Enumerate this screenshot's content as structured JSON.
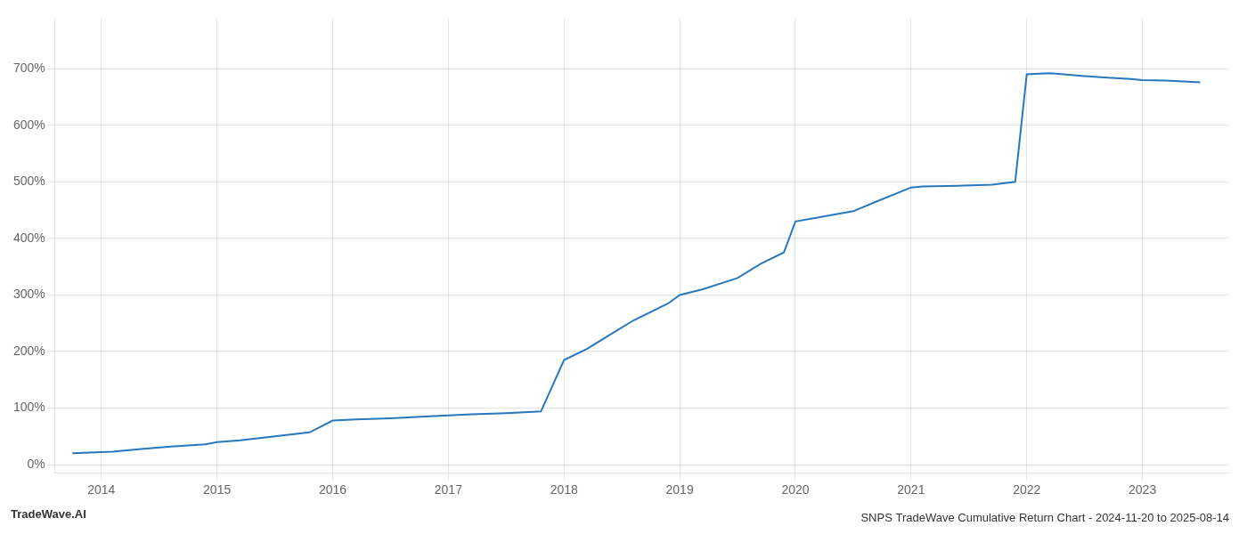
{
  "chart_data": {
    "type": "line",
    "title": "SNPS TradeWave Cumulative Return Chart - 2024-11-20 to 2025-08-14",
    "annotations": [
      "TradeWave.AI"
    ],
    "x": [
      2013.75,
      2014.0,
      2014.1,
      2014.3,
      2014.6,
      2014.9,
      2015.0,
      2015.2,
      2015.5,
      2015.8,
      2016.0,
      2016.2,
      2016.5,
      2016.8,
      2017.0,
      2017.2,
      2017.5,
      2017.8,
      2018.0,
      2018.2,
      2018.4,
      2018.6,
      2018.9,
      2019.0,
      2019.2,
      2019.5,
      2019.7,
      2019.9,
      2020.0,
      2020.2,
      2020.5,
      2020.7,
      2021.0,
      2021.1,
      2021.4,
      2021.7,
      2021.9,
      2022.0,
      2022.2,
      2022.5,
      2022.7,
      2022.9,
      2023.0,
      2023.2,
      2023.5
    ],
    "values": [
      20,
      22,
      23,
      27,
      32,
      36,
      40,
      43,
      50,
      57,
      78,
      80,
      82,
      85,
      87,
      89,
      91,
      94,
      185,
      205,
      230,
      255,
      285,
      300,
      310,
      330,
      355,
      375,
      430,
      437,
      448,
      465,
      490,
      492,
      493,
      495,
      500,
      690,
      692,
      687,
      684,
      682,
      680,
      679,
      676
    ],
    "color": "#2878be",
    "xlim": [
      2013.6,
      2023.75
    ],
    "xticks": [
      2014,
      2015,
      2016,
      2017,
      2018,
      2019,
      2020,
      2021,
      2022,
      2023
    ],
    "ylim": [
      -15,
      790
    ],
    "yticks": [
      {
        "value": 0,
        "label": "0%"
      },
      {
        "value": 100,
        "label": "100%"
      },
      {
        "value": 200,
        "label": "200%"
      },
      {
        "value": 300,
        "label": "300%"
      },
      {
        "value": 400,
        "label": "400%"
      },
      {
        "value": 500,
        "label": "500%"
      },
      {
        "value": 600,
        "label": "600%"
      },
      {
        "value": 700,
        "label": "700%"
      }
    ],
    "grid": true
  }
}
